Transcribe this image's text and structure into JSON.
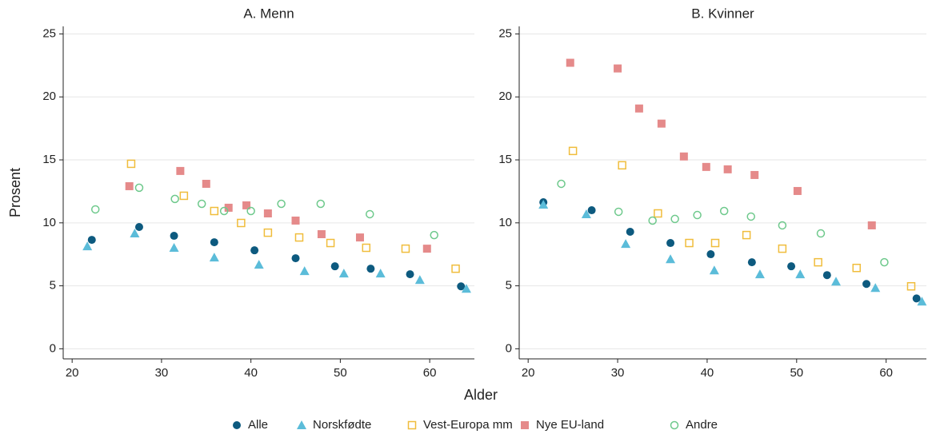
{
  "chart_data": [
    {
      "type": "scatter",
      "title": "A. Menn",
      "xlabel": "Alder",
      "ylabel": "Prosent",
      "xlim": [
        19,
        65
      ],
      "ylim": [
        -0.8,
        25.6
      ],
      "xticks": [
        20,
        30,
        40,
        50,
        60
      ],
      "yticks": [
        0,
        5,
        10,
        15,
        20,
        25
      ],
      "grid": true,
      "series": [
        {
          "name": "Alle",
          "color": "#0d5a7f",
          "marker": "circle",
          "x": [
            22.2,
            27.5,
            31.4,
            35.9,
            40.4,
            45.0,
            49.4,
            53.4,
            57.8,
            63.5
          ],
          "values": [
            8.65,
            9.67,
            8.97,
            8.46,
            7.82,
            7.19,
            6.55,
            6.36,
            5.92,
            4.96
          ]
        },
        {
          "name": "Norskfødte",
          "color": "#5bbcd9",
          "marker": "triangle",
          "x": [
            21.7,
            27.0,
            31.4,
            35.9,
            40.9,
            46.0,
            50.4,
            54.5,
            58.9,
            64.1
          ],
          "values": [
            8.14,
            9.16,
            8.02,
            7.25,
            6.68,
            6.17,
            5.98,
            5.98,
            5.47,
            4.77
          ]
        },
        {
          "name": "Vest-Europa mm",
          "color": "#f0bd3c",
          "marker": "square-open",
          "x": [
            26.6,
            32.5,
            35.9,
            38.9,
            41.9,
            45.4,
            48.9,
            52.9,
            57.3,
            62.9
          ],
          "values": [
            14.69,
            12.15,
            10.94,
            9.99,
            9.22,
            8.84,
            8.4,
            8.02,
            7.95,
            6.36
          ]
        },
        {
          "name": "Nye EU-land",
          "color": "#e58a8a",
          "marker": "square",
          "x": [
            26.4,
            32.1,
            35.0,
            37.5,
            39.5,
            41.9,
            45.0,
            47.9,
            52.2,
            59.7
          ],
          "values": [
            12.91,
            14.12,
            13.1,
            11.2,
            11.39,
            10.75,
            10.18,
            9.1,
            8.84,
            7.95
          ]
        },
        {
          "name": "Andre",
          "color": "#6ec98c",
          "marker": "circle-open",
          "x": [
            22.6,
            27.5,
            31.5,
            34.5,
            37.0,
            40.0,
            43.4,
            47.8,
            53.3,
            60.5
          ],
          "values": [
            11.07,
            12.79,
            11.9,
            11.51,
            10.94,
            10.94,
            11.51,
            11.51,
            10.69,
            9.03
          ]
        }
      ]
    },
    {
      "type": "scatter",
      "title": "B. Kvinner",
      "xlim": [
        19,
        64.5
      ],
      "ylim": [
        -0.8,
        25.6
      ],
      "xticks": [
        20,
        30,
        40,
        50,
        60
      ],
      "yticks": [
        0,
        5,
        10,
        15,
        20,
        25
      ],
      "grid": true,
      "series": [
        {
          "color": "#0d5a7f",
          "marker": "circle",
          "x": [
            21.7,
            27.1,
            31.4,
            35.9,
            40.4,
            45.0,
            49.4,
            53.4,
            57.8,
            63.4
          ],
          "values": [
            11.64,
            11.0,
            9.29,
            8.4,
            7.51,
            6.87,
            6.55,
            5.85,
            5.15,
            4.0
          ]
        },
        {
          "color": "#5bbcd9",
          "marker": "triangle",
          "x": [
            21.7,
            26.5,
            30.9,
            35.9,
            40.8,
            45.9,
            50.4,
            54.4,
            58.8,
            64.0
          ],
          "values": [
            11.45,
            10.69,
            8.33,
            7.12,
            6.23,
            5.92,
            5.92,
            5.34,
            4.83,
            3.75
          ]
        },
        {
          "color": "#f0bd3c",
          "marker": "square-open",
          "x": [
            25.0,
            30.5,
            34.5,
            38.0,
            40.9,
            44.4,
            48.4,
            52.4,
            56.7,
            62.8
          ],
          "values": [
            15.71,
            14.57,
            10.75,
            8.4,
            8.4,
            9.03,
            7.95,
            6.87,
            6.42,
            4.96
          ]
        },
        {
          "color": "#e58a8a",
          "marker": "square",
          "x": [
            24.7,
            30.0,
            32.4,
            34.9,
            37.4,
            39.9,
            42.3,
            45.3,
            50.1,
            58.4
          ],
          "values": [
            22.71,
            22.26,
            19.08,
            17.88,
            15.27,
            14.44,
            14.25,
            13.8,
            12.53,
            9.8
          ]
        },
        {
          "color": "#6ec98c",
          "marker": "circle-open",
          "x": [
            23.7,
            30.1,
            33.9,
            36.4,
            38.9,
            41.9,
            44.9,
            48.4,
            52.7,
            59.8
          ],
          "values": [
            13.1,
            10.88,
            10.18,
            10.31,
            10.62,
            10.94,
            10.5,
            9.8,
            9.16,
            6.87
          ]
        }
      ]
    }
  ]
}
